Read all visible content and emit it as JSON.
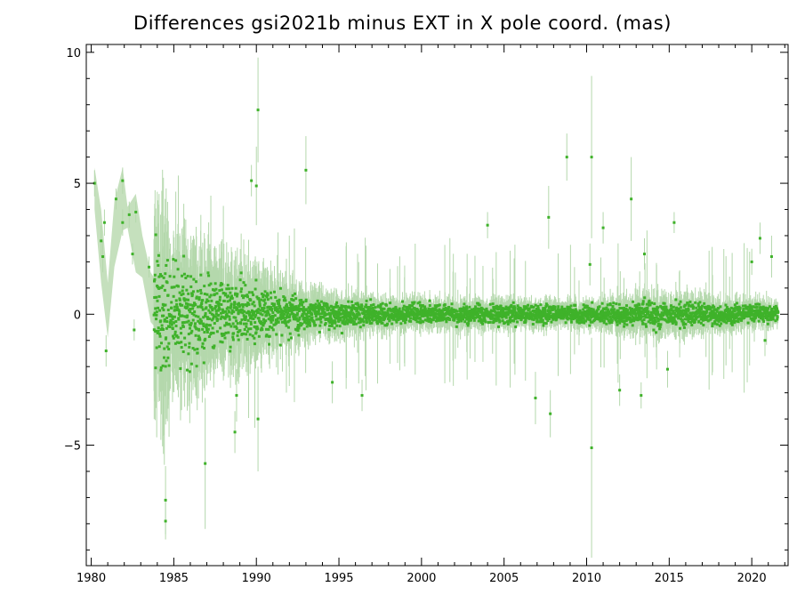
{
  "chart_data": {
    "type": "scatter",
    "title": "Differences gsi2021b minus EXT in X pole coord. (mas)",
    "xlabel": "",
    "ylabel": "",
    "xlim": [
      1979.7,
      2022.2
    ],
    "ylim": [
      -9.6,
      10.3
    ],
    "xticks": [
      1980,
      1985,
      1990,
      1995,
      2000,
      2005,
      2010,
      2015,
      2020
    ],
    "yticks": [
      -5,
      0,
      5,
      10
    ],
    "ytick_labels": [
      "−5",
      "0",
      "5",
      "10"
    ],
    "grid": false,
    "legend": "none",
    "colors": {
      "points": "#3fb22a",
      "error_bars": "#b4d8ac",
      "band": "#c5e0bd"
    },
    "band_upper": [
      [
        1980.2,
        5.6
      ],
      [
        1980.6,
        4.0
      ],
      [
        1981.0,
        1.2
      ],
      [
        1981.4,
        4.3
      ],
      [
        1981.9,
        5.6
      ],
      [
        1982.2,
        4.1
      ],
      [
        1982.7,
        4.6
      ],
      [
        1983.1,
        3.0
      ],
      [
        1983.6,
        1.6
      ],
      [
        1984.0,
        1.2
      ],
      [
        1984.5,
        1.0
      ],
      [
        1985.0,
        0.9
      ]
    ],
    "band_lower": [
      [
        1980.2,
        4.0
      ],
      [
        1980.6,
        1.2
      ],
      [
        1981.0,
        -0.9
      ],
      [
        1981.4,
        1.8
      ],
      [
        1981.9,
        3.2
      ],
      [
        1982.2,
        3.3
      ],
      [
        1982.7,
        1.6
      ],
      [
        1983.1,
        1.4
      ],
      [
        1983.6,
        -0.3
      ],
      [
        1984.0,
        -0.6
      ],
      [
        1984.5,
        -0.9
      ],
      [
        1985.0,
        -0.9
      ]
    ],
    "notable_points": [
      {
        "x": 1980.2,
        "y": 5.0,
        "err": 0.5
      },
      {
        "x": 1980.6,
        "y": 2.8,
        "err": 0.6
      },
      {
        "x": 1980.7,
        "y": 2.2,
        "err": 0.6
      },
      {
        "x": 1980.8,
        "y": 3.5,
        "err": 0.5
      },
      {
        "x": 1980.9,
        "y": -1.4,
        "err": 0.6
      },
      {
        "x": 1981.5,
        "y": 4.4,
        "err": 0.4
      },
      {
        "x": 1981.9,
        "y": 5.1,
        "err": 0.5
      },
      {
        "x": 1981.9,
        "y": 3.5,
        "err": 0.5
      },
      {
        "x": 1982.3,
        "y": 3.8,
        "err": 0.5
      },
      {
        "x": 1982.5,
        "y": 2.3,
        "err": 0.4
      },
      {
        "x": 1982.7,
        "y": 3.9,
        "err": 0.4
      },
      {
        "x": 1982.6,
        "y": -0.6,
        "err": 0.4
      },
      {
        "x": 1983.5,
        "y": 1.8,
        "err": 0.4
      },
      {
        "x": 1984.5,
        "y": -7.1,
        "err": 1.3
      },
      {
        "x": 1984.5,
        "y": -7.9,
        "err": 0.7
      },
      {
        "x": 1986.9,
        "y": -5.7,
        "err": 2.5
      },
      {
        "x": 1988.7,
        "y": -4.5,
        "err": 0.8
      },
      {
        "x": 1988.8,
        "y": -3.1,
        "err": 1.0
      },
      {
        "x": 1989.7,
        "y": 5.1,
        "err": 0.6
      },
      {
        "x": 1990.0,
        "y": 4.9,
        "err": 1.5
      },
      {
        "x": 1990.1,
        "y": 7.8,
        "err": 2.0
      },
      {
        "x": 1990.1,
        "y": -4.0,
        "err": 2.0
      },
      {
        "x": 1993.0,
        "y": 5.5,
        "err": 1.3
      },
      {
        "x": 1994.6,
        "y": -2.6,
        "err": 0.8
      },
      {
        "x": 1996.4,
        "y": -3.1,
        "err": 0.6
      },
      {
        "x": 2004.0,
        "y": 3.4,
        "err": 0.5
      },
      {
        "x": 2006.9,
        "y": -3.2,
        "err": 1.0
      },
      {
        "x": 2007.7,
        "y": 3.7,
        "err": 1.2
      },
      {
        "x": 2007.8,
        "y": -3.8,
        "err": 0.9
      },
      {
        "x": 2008.8,
        "y": 6.0,
        "err": 0.9
      },
      {
        "x": 2010.3,
        "y": 6.0,
        "err": 3.1
      },
      {
        "x": 2010.3,
        "y": -5.1,
        "err": 4.2
      },
      {
        "x": 2010.2,
        "y": 1.9,
        "err": 0.8
      },
      {
        "x": 2011.0,
        "y": 3.3,
        "err": 0.6
      },
      {
        "x": 2012.0,
        "y": -2.9,
        "err": 0.6
      },
      {
        "x": 2012.7,
        "y": 4.4,
        "err": 1.6
      },
      {
        "x": 2013.3,
        "y": -3.1,
        "err": 0.5
      },
      {
        "x": 2013.5,
        "y": 2.3,
        "err": 0.6
      },
      {
        "x": 2014.9,
        "y": -2.1,
        "err": 0.7
      },
      {
        "x": 2015.3,
        "y": 3.5,
        "err": 0.4
      },
      {
        "x": 2020.0,
        "y": 2.0,
        "err": 0.5
      },
      {
        "x": 2020.5,
        "y": 2.9,
        "err": 0.6
      },
      {
        "x": 2021.2,
        "y": 2.2,
        "err": 0.8
      },
      {
        "x": 2020.8,
        "y": -1.0,
        "err": 0.6
      }
    ],
    "dense_series": {
      "x_range": [
        1983.8,
        2021.6
      ],
      "y_spread_by_year": [
        [
          1983.8,
          1.6
        ],
        [
          1985.0,
          1.3
        ],
        [
          1987.0,
          1.0
        ],
        [
          1990.0,
          0.7
        ],
        [
          1993.0,
          0.45
        ],
        [
          1996.0,
          0.3
        ],
        [
          2000.0,
          0.25
        ],
        [
          2005.0,
          0.25
        ],
        [
          2010.0,
          0.22
        ],
        [
          2014.0,
          0.35
        ],
        [
          2017.0,
          0.3
        ],
        [
          2021.6,
          0.2
        ]
      ]
    }
  }
}
